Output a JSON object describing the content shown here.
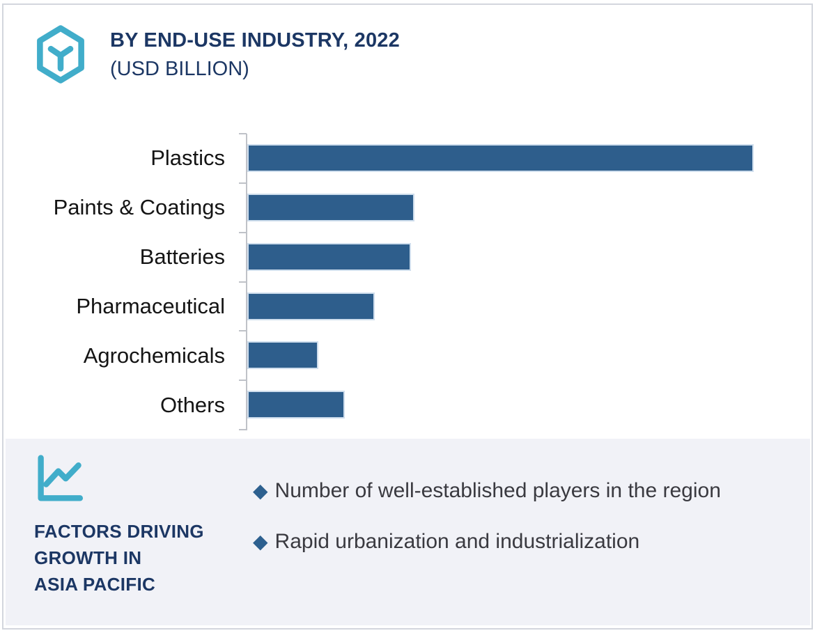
{
  "header": {
    "title": "BY END-USE INDUSTRY, 2022",
    "subtitle": "(USD BILLION)",
    "brand_icon": "hexagon-molecule-icon"
  },
  "chart_data": {
    "type": "bar",
    "orientation": "horizontal",
    "title": "BY END-USE INDUSTRY, 2022 (USD BILLION)",
    "categories": [
      "Plastics",
      "Paints & Coatings",
      "Batteries",
      "Pharmaceutical",
      "Agrochemicals",
      "Others"
    ],
    "values_pct_of_max": [
      100,
      33,
      32.3,
      25.2,
      14,
      19.3
    ],
    "value_axis_labels_visible": false,
    "data_labels_visible": false,
    "grid": "off",
    "legend": "none",
    "bar_color": "#2e5e8c",
    "axis_color": "#bfc2c8"
  },
  "factors": {
    "icon": "line-chart-icon",
    "heading": "FACTORS DRIVING\nGROWTH IN\nASIA PACIFIC",
    "bullet_marker": "diamond",
    "bullets": [
      "Number of well-established players in the region",
      "Rapid urbanization and industrialization"
    ]
  },
  "colors": {
    "teal_accent": "#41adca",
    "navy_text": "#1c3764",
    "bar_blue": "#2e5e8c",
    "panel_bg": "#f1f2f7",
    "card_border": "#d3d6dd",
    "bullet_diamond": "#2d608f",
    "body_text": "#3a3a40",
    "label_text": "#141414"
  }
}
